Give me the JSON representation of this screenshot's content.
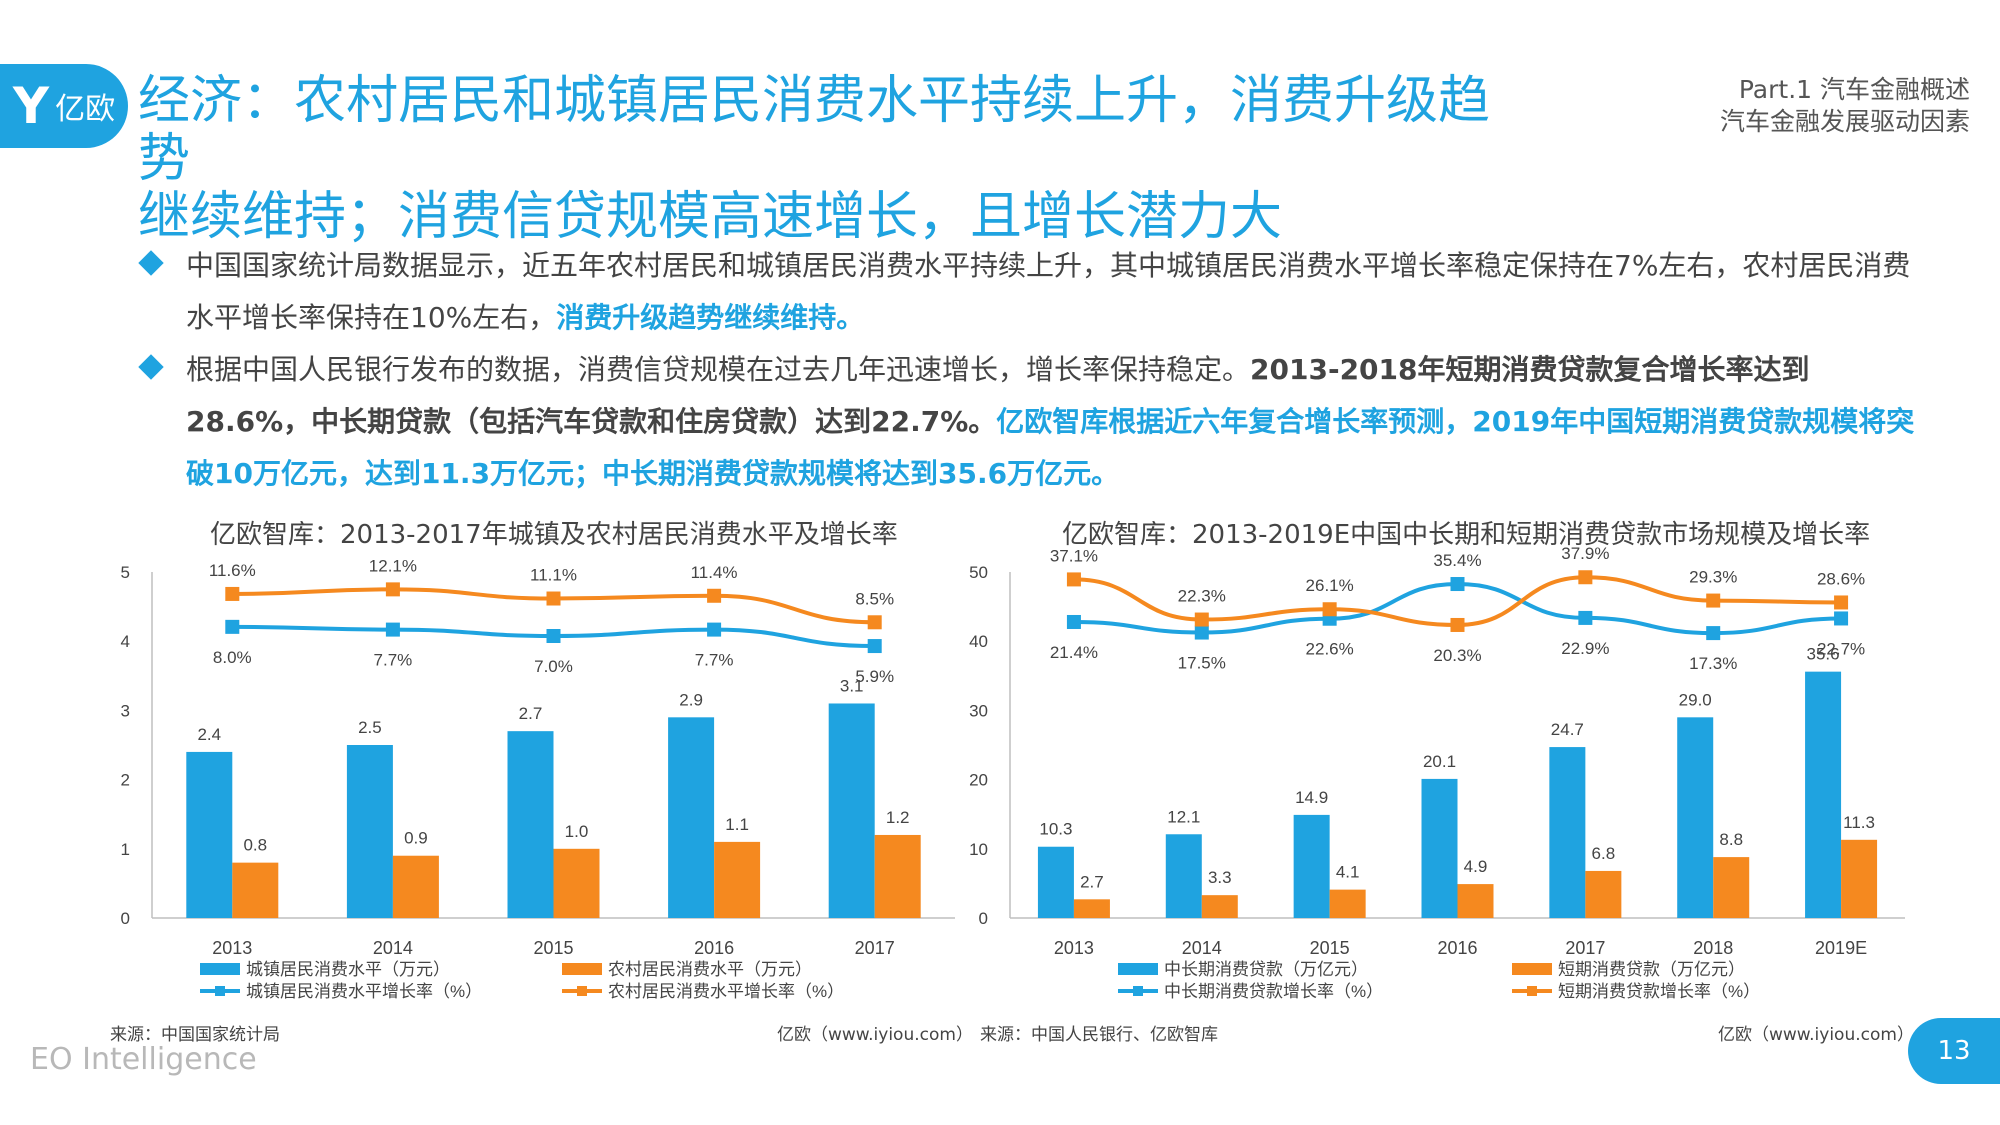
{
  "header": {
    "logo_mark": "Y",
    "logo_text": "亿欧",
    "title_line1": "经济：农村居民和城镇居民消费水平持续上升，消费升级趋势",
    "title_line2": "继续维持；消费信贷规模高速增长，且增长潜力大",
    "part": "Part.1 汽车金融概述",
    "section": "汽车金融发展驱动因素"
  },
  "bullets": {
    "b1_text": "中国国家统计局数据显示，近五年农村居民和城镇居民消费水平持续上升，其中城镇居民消费水平增长率稳定保持在7%左右，农村居民消费水平增长率保持在10%左右，",
    "b1_hl": "消费升级趋势继续维持。",
    "b2_text": "根据中国人民银行发布的数据，消费信贷规模在过去几年迅速增长，增长率保持稳定。",
    "b2_bold": "2013-2018年短期消费贷款复合增长率达到28.6%，中长期贷款（包括汽车贷款和住房贷款）达到22.7%。",
    "b2_hl": "亿欧智库根据近六年复合增长率预测，2019年中国短期消费贷款规模将突破10万亿元，达到11.3万亿元；中长期消费贷款规模将达到35.6万亿元。"
  },
  "colors": {
    "blue": "#1fa3e0",
    "orange": "#f5891f",
    "title_blue": "#1fa3e0"
  },
  "chart_data": [
    {
      "type": "bar",
      "title": "亿欧智库：2013-2017年城镇及农村居民消费水平及增长率",
      "categories": [
        "2013",
        "2014",
        "2015",
        "2016",
        "2017"
      ],
      "ylim": [
        0,
        5
      ],
      "yticks": [
        "0",
        "1",
        "2",
        "3",
        "4",
        "5"
      ],
      "series": [
        {
          "name": "城镇居民消费水平（万元）",
          "kind": "bar",
          "color": "#1fa3e0",
          "values": [
            2.4,
            2.5,
            2.7,
            2.9,
            3.1
          ],
          "labels": [
            "2.4",
            "2.5",
            "2.7",
            "2.9",
            "3.1"
          ]
        },
        {
          "name": "农村居民消费水平（万元）",
          "kind": "bar",
          "color": "#f5891f",
          "values": [
            0.8,
            0.9,
            1.0,
            1.1,
            1.2
          ],
          "labels": [
            "0.8",
            "0.9",
            "1.0",
            "1.1",
            "1.2"
          ]
        },
        {
          "name": "城镇居民消费水平增长率（%）",
          "kind": "line",
          "color": "#1fa3e0",
          "values": [
            8.0,
            7.7,
            7.0,
            7.7,
            5.9
          ],
          "labels": [
            "8.0%",
            "7.7%",
            "7.0%",
            "7.7%",
            "5.9%"
          ]
        },
        {
          "name": "农村居民消费水平增长率（%）",
          "kind": "line",
          "color": "#f5891f",
          "values": [
            11.6,
            12.1,
            11.1,
            11.4,
            8.5
          ],
          "labels": [
            "11.6%",
            "12.1%",
            "11.1%",
            "11.4%",
            "8.5%"
          ]
        }
      ],
      "source": "来源：中国国家统计局",
      "credit": "亿欧（www.iyiou.com）"
    },
    {
      "type": "bar",
      "title": "亿欧智库：2013-2019E中国中长期和短期消费贷款市场规模及增长率",
      "categories": [
        "2013",
        "2014",
        "2015",
        "2016",
        "2017",
        "2018",
        "2019E"
      ],
      "ylim": [
        0,
        50
      ],
      "yticks": [
        "0",
        "10",
        "20",
        "30",
        "40",
        "50"
      ],
      "series": [
        {
          "name": "中长期消费贷款（万亿元）",
          "kind": "bar",
          "color": "#1fa3e0",
          "values": [
            10.3,
            12.1,
            14.9,
            20.1,
            24.7,
            29.0,
            35.6
          ],
          "labels": [
            "10.3",
            "12.1",
            "14.9",
            "20.1",
            "24.7",
            "29.0",
            "35.6"
          ]
        },
        {
          "name": "短期消费贷款（万亿元）",
          "kind": "bar",
          "color": "#f5891f",
          "values": [
            2.7,
            3.3,
            4.1,
            4.9,
            6.8,
            8.8,
            11.3
          ],
          "labels": [
            "2.7",
            "3.3",
            "4.1",
            "4.9",
            "6.8",
            "8.8",
            "11.3"
          ]
        },
        {
          "name": "中长期消费贷款增长率（%）",
          "kind": "line",
          "color": "#1fa3e0",
          "values": [
            21.4,
            17.5,
            22.6,
            35.4,
            22.9,
            17.3,
            22.7
          ],
          "labels": [
            "21.4%",
            "17.5%",
            "22.6%",
            "35.4%",
            "22.9%",
            "17.3%",
            "22.7%"
          ]
        },
        {
          "name": "短期消费贷款增长率（%）",
          "kind": "line",
          "color": "#f5891f",
          "values": [
            37.1,
            22.3,
            26.1,
            20.3,
            37.9,
            29.3,
            28.6
          ],
          "labels": [
            "37.1%",
            "22.3%",
            "26.1%",
            "20.3%",
            "37.9%",
            "29.3%",
            "28.6%"
          ]
        }
      ],
      "source": "来源：中国人民银行、亿欧智库",
      "credit": "亿欧（www.iyiou.com）"
    }
  ],
  "footer": {
    "brand": "EO Intelligence",
    "page": "13"
  }
}
